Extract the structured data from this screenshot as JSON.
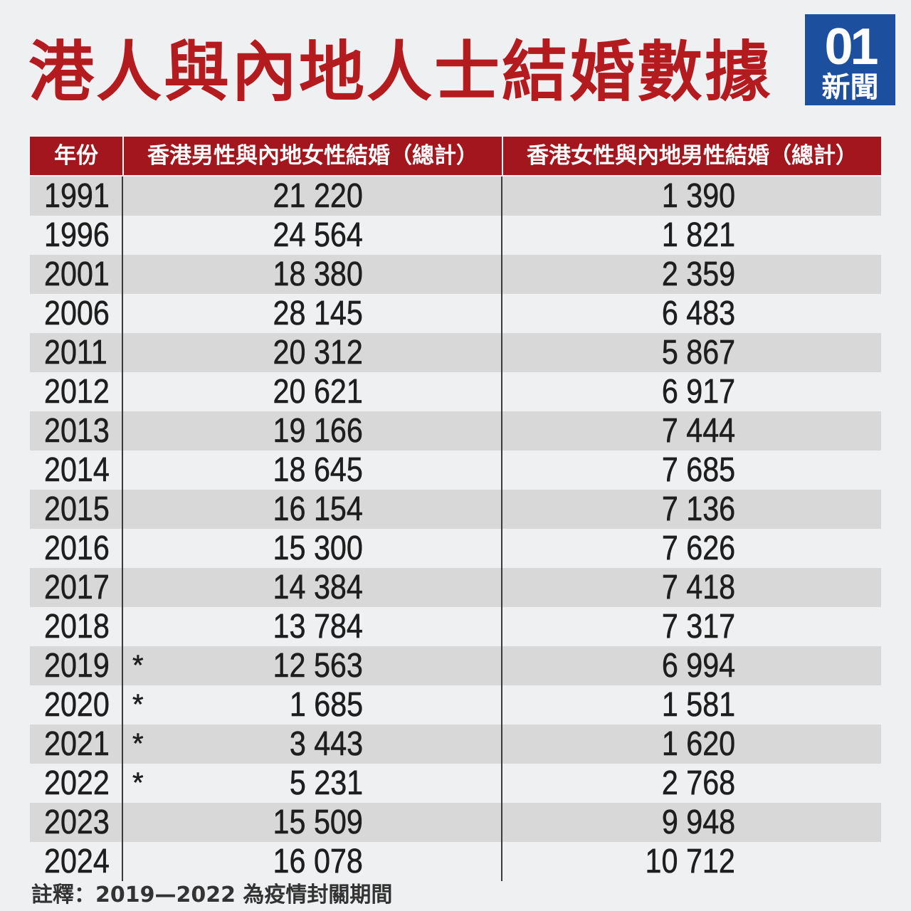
{
  "logo": {
    "mark": "01",
    "name": "新聞"
  },
  "colors": {
    "title": "#b31b1f",
    "header_bg": "#a3161d",
    "logo_bg": "#1d4f9f",
    "row_alt": "#d8d8d8",
    "page_bg": "#eff0f2"
  },
  "chart_data": {
    "type": "table",
    "title": "港人與內地人士結婚數據",
    "columns": [
      "年份",
      "香港男性與內地女性結婚（總計）",
      "香港女性與內地男性結婚（總計）"
    ],
    "rows": [
      {
        "year": "1991",
        "hk_male_mainland_female": "21 220",
        "hk_female_mainland_male": "1 390"
      },
      {
        "year": "1996",
        "hk_male_mainland_female": "24 564",
        "hk_female_mainland_male": "1 821"
      },
      {
        "year": "2001",
        "hk_male_mainland_female": "18 380",
        "hk_female_mainland_male": "2 359"
      },
      {
        "year": "2006",
        "hk_male_mainland_female": "28 145",
        "hk_female_mainland_male": "6 483"
      },
      {
        "year": "2011",
        "hk_male_mainland_female": "20 312",
        "hk_female_mainland_male": "5 867"
      },
      {
        "year": "2012",
        "hk_male_mainland_female": "20 621",
        "hk_female_mainland_male": "6 917"
      },
      {
        "year": "2013",
        "hk_male_mainland_female": "19 166",
        "hk_female_mainland_male": "7 444"
      },
      {
        "year": "2014",
        "hk_male_mainland_female": "18 645",
        "hk_female_mainland_male": "7 685"
      },
      {
        "year": "2015",
        "hk_male_mainland_female": "16 154",
        "hk_female_mainland_male": "7 136"
      },
      {
        "year": "2016",
        "hk_male_mainland_female": "15 300",
        "hk_female_mainland_male": "7 626"
      },
      {
        "year": "2017",
        "hk_male_mainland_female": "14 384",
        "hk_female_mainland_male": "7 418"
      },
      {
        "year": "2018",
        "hk_male_mainland_female": "13 784",
        "hk_female_mainland_male": "7 317"
      },
      {
        "year": "2019",
        "mark": "*",
        "hk_male_mainland_female": "12 563",
        "hk_female_mainland_male": "6 994"
      },
      {
        "year": "2020",
        "mark": "*",
        "hk_male_mainland_female": "1 685",
        "hk_female_mainland_male": "1 581"
      },
      {
        "year": "2021",
        "mark": "*",
        "hk_male_mainland_female": "3 443",
        "hk_female_mainland_male": "1 620"
      },
      {
        "year": "2022",
        "mark": "*",
        "hk_male_mainland_female": "5 231",
        "hk_female_mainland_male": "2 768"
      },
      {
        "year": "2023",
        "hk_male_mainland_female": "15 509",
        "hk_female_mainland_male": "9 948"
      },
      {
        "year": "2024",
        "hk_male_mainland_female": "16 078",
        "hk_female_mainland_male": "10 712"
      }
    ],
    "note": "註釋：2019—2022 為疫情封關期間"
  }
}
